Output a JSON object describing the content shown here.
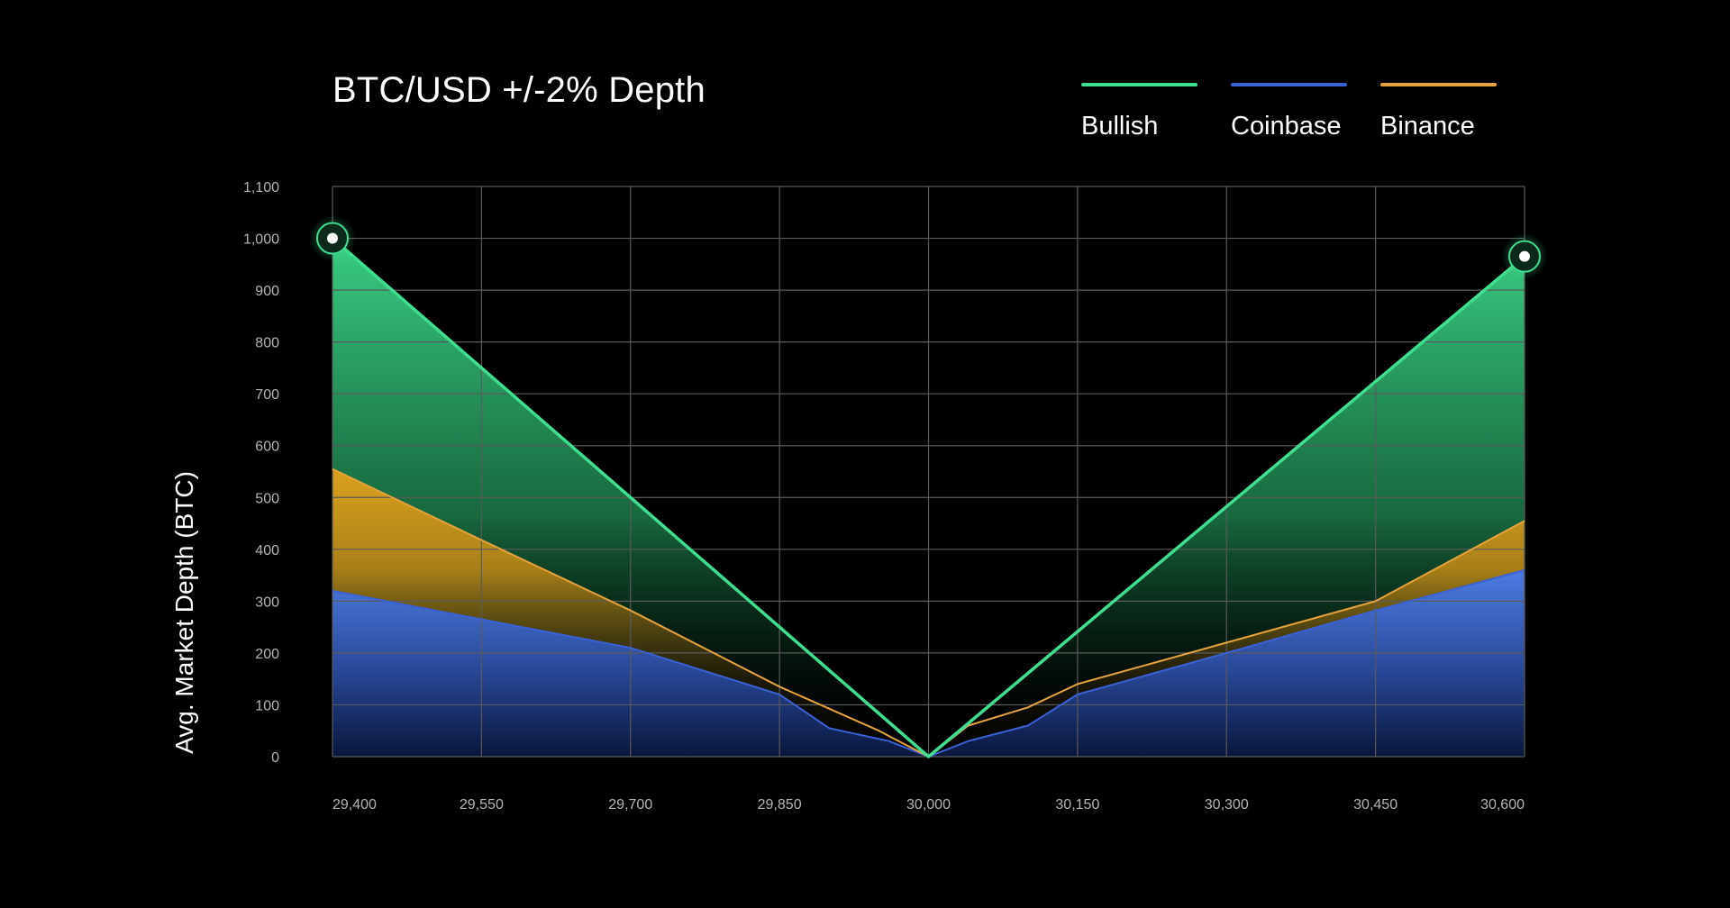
{
  "chart_data": {
    "type": "area",
    "title": "BTC/USD +/-2% Depth",
    "xlabel": "",
    "ylabel": "Avg. Market Depth (BTC)",
    "xlim": [
      29400,
      30600
    ],
    "ylim": [
      0,
      1100
    ],
    "x_ticks": [
      {
        "value": 29400,
        "label": "29,400"
      },
      {
        "value": 29550,
        "label": "29,550"
      },
      {
        "value": 29700,
        "label": "29,700"
      },
      {
        "value": 29850,
        "label": "29,850"
      },
      {
        "value": 30000,
        "label": "30,000"
      },
      {
        "value": 30150,
        "label": "30,150"
      },
      {
        "value": 30300,
        "label": "30,300"
      },
      {
        "value": 30450,
        "label": "30,450"
      },
      {
        "value": 30600,
        "label": "30,600"
      }
    ],
    "y_ticks": [
      {
        "value": 0,
        "label": "0"
      },
      {
        "value": 100,
        "label": "100"
      },
      {
        "value": 200,
        "label": "200"
      },
      {
        "value": 300,
        "label": "300"
      },
      {
        "value": 400,
        "label": "400"
      },
      {
        "value": 500,
        "label": "500"
      },
      {
        "value": 600,
        "label": "600"
      },
      {
        "value": 700,
        "label": "700"
      },
      {
        "value": 800,
        "label": "800"
      },
      {
        "value": 900,
        "label": "900"
      },
      {
        "value": 1000,
        "label": "1,000"
      },
      {
        "value": 1100,
        "label": "1,100"
      }
    ],
    "grid": true,
    "legend_position": "top-right",
    "series": [
      {
        "name": "Coinbase",
        "color": "#3a62d6",
        "points": [
          [
            29400,
            320
          ],
          [
            29550,
            265
          ],
          [
            29700,
            210
          ],
          [
            29850,
            120
          ],
          [
            29900,
            55
          ],
          [
            29960,
            30
          ],
          [
            30000,
            0
          ],
          [
            30040,
            30
          ],
          [
            30100,
            60
          ],
          [
            30150,
            120
          ],
          [
            30300,
            200
          ],
          [
            30450,
            282
          ],
          [
            30600,
            360
          ]
        ]
      },
      {
        "name": "Binance",
        "color": "#e6a23c",
        "points": [
          [
            29400,
            555
          ],
          [
            29550,
            418
          ],
          [
            29700,
            282
          ],
          [
            29850,
            135
          ],
          [
            29950,
            50
          ],
          [
            30000,
            0
          ],
          [
            30040,
            60
          ],
          [
            30100,
            95
          ],
          [
            30150,
            140
          ],
          [
            30300,
            220
          ],
          [
            30450,
            300
          ],
          [
            30600,
            455
          ]
        ]
      },
      {
        "name": "Bullish",
        "color": "#3ee08f",
        "points": [
          [
            29400,
            1000
          ],
          [
            30000,
            0
          ],
          [
            30600,
            965
          ]
        ]
      }
    ]
  }
}
